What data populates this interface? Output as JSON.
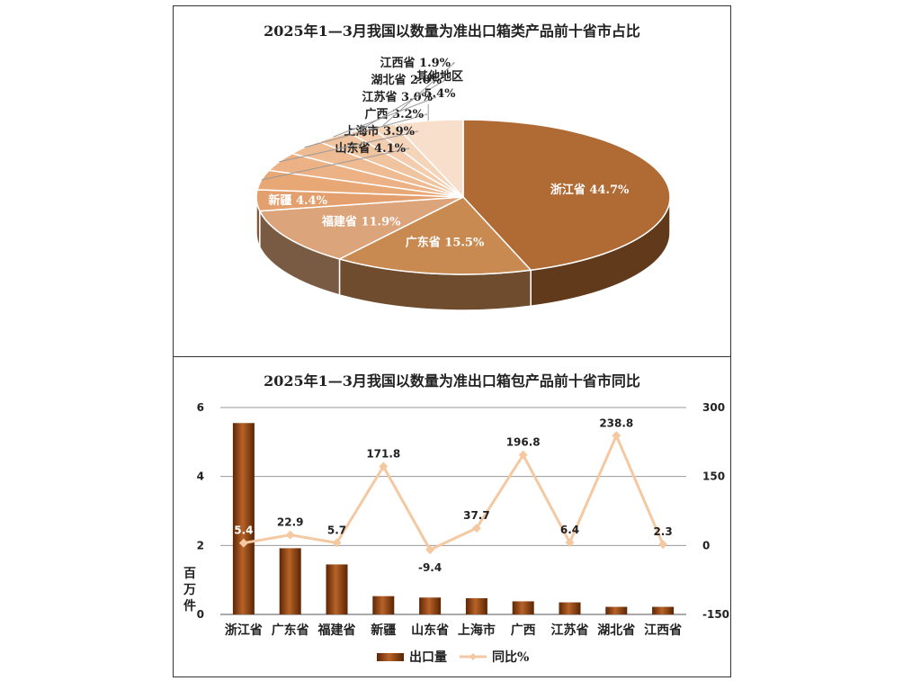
{
  "chart_data": [
    {
      "type": "pie",
      "title": "2025年1—3月我国以数量为准出口箱类产品前十省市占比",
      "slices": [
        {
          "label": "浙江省",
          "value": 44.7,
          "text": "44.7%"
        },
        {
          "label": "广东省",
          "value": 15.5,
          "text": "15.5%"
        },
        {
          "label": "福建省",
          "value": 11.9,
          "text": "11.9%"
        },
        {
          "label": "新疆",
          "value": 4.4,
          "text": "4.4%"
        },
        {
          "label": "山东省",
          "value": 4.1,
          "text": "4.1%"
        },
        {
          "label": "上海市",
          "value": 3.9,
          "text": "3.9%"
        },
        {
          "label": "广西",
          "value": 3.2,
          "text": "3.2%"
        },
        {
          "label": "江苏省",
          "value": 3.0,
          "text": "3.0%"
        },
        {
          "label": "湖北省",
          "value": 2.0,
          "text": "2.0%"
        },
        {
          "label": "江西省",
          "value": 1.9,
          "text": "1.9%"
        },
        {
          "label": "其他地区",
          "value": 5.4,
          "text": "5.4%"
        }
      ],
      "colors": [
        "#b06a33",
        "#c98a52",
        "#dca47a",
        "#e3a06e",
        "#e8a876",
        "#ecb184",
        "#efbb92",
        "#f1c4a0",
        "#f3cdae",
        "#f5d5ba",
        "#f7dfcc"
      ]
    },
    {
      "type": "bar",
      "title": "2025年1—3月我国以数量为准出口箱包产品前十省市同比",
      "categories": [
        "浙江省",
        "广东省",
        "福建省",
        "新疆",
        "山东省",
        "上海市",
        "广西",
        "江苏省",
        "湖北省",
        "江西省"
      ],
      "series": [
        {
          "name": "出口量",
          "type": "bar",
          "axis": "left",
          "values": [
            5.55,
            1.92,
            1.45,
            0.53,
            0.49,
            0.47,
            0.38,
            0.35,
            0.22,
            0.22
          ]
        },
        {
          "name": "同比%",
          "type": "line",
          "axis": "right",
          "values": [
            5.4,
            22.9,
            5.7,
            171.8,
            -9.4,
            37.7,
            196.8,
            6.4,
            238.8,
            2.3
          ],
          "labels": [
            "5.4",
            "22.9",
            "5.7",
            "171.8",
            "-9.4",
            "37.7",
            "196.8",
            "6.4",
            "238.8",
            "2.3"
          ]
        }
      ],
      "y_left": {
        "min": 0,
        "max": 6,
        "ticks": [
          "0",
          "2",
          "4",
          "6"
        ],
        "unit": "百万件"
      },
      "y_right": {
        "min": -150,
        "max": 300,
        "ticks": [
          "-150",
          "0",
          "150",
          "300"
        ]
      },
      "grid": true,
      "legend_position": "bottom",
      "bar_color": "#8a3e0e",
      "line_color": "#f4c9a2"
    }
  ]
}
